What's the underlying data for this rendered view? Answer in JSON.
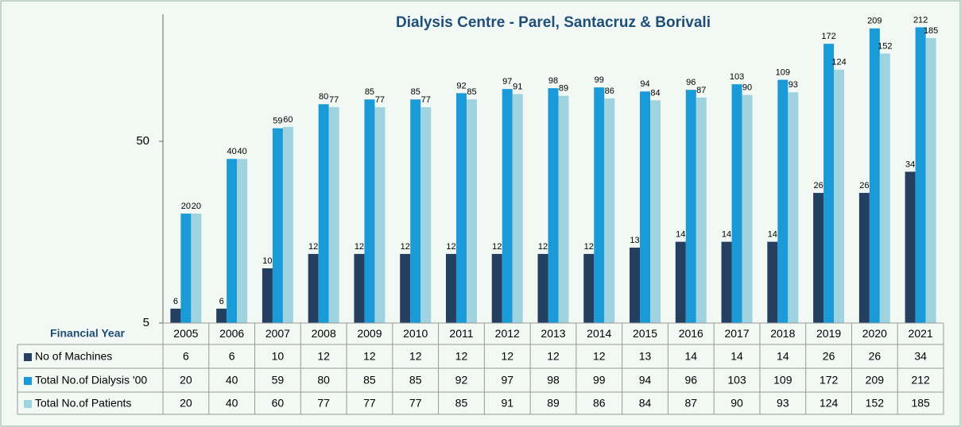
{
  "chart_data": {
    "type": "bar",
    "title": "Dialysis Centre - Parel, Santacruz & Borivali",
    "x_label": "Financial Year",
    "categories": [
      "2005",
      "2006",
      "2007",
      "2008",
      "2009",
      "2010",
      "2011",
      "2012",
      "2013",
      "2014",
      "2015",
      "2016",
      "2017",
      "2018",
      "2019",
      "2020",
      "2021"
    ],
    "series": [
      {
        "name": "No of Machines",
        "color": "#243f60",
        "values": [
          6,
          6,
          10,
          12,
          12,
          12,
          12,
          12,
          12,
          12,
          13,
          14,
          14,
          14,
          26,
          26,
          34
        ]
      },
      {
        "name": "Total No.of Dialysis '00",
        "color": "#1a9ad6",
        "values": [
          20,
          40,
          59,
          80,
          85,
          85,
          92,
          97,
          98,
          99,
          94,
          96,
          103,
          109,
          172,
          209,
          212
        ]
      },
      {
        "name": "Total No.of Patients",
        "color": "#9fd3df",
        "values": [
          20,
          40,
          60,
          77,
          77,
          77,
          85,
          91,
          89,
          86,
          84,
          87,
          90,
          93,
          124,
          152,
          185
        ]
      }
    ],
    "ylim": [
      5,
      250
    ],
    "yticks": [
      5,
      50
    ],
    "log_scale": true,
    "grid": false
  }
}
